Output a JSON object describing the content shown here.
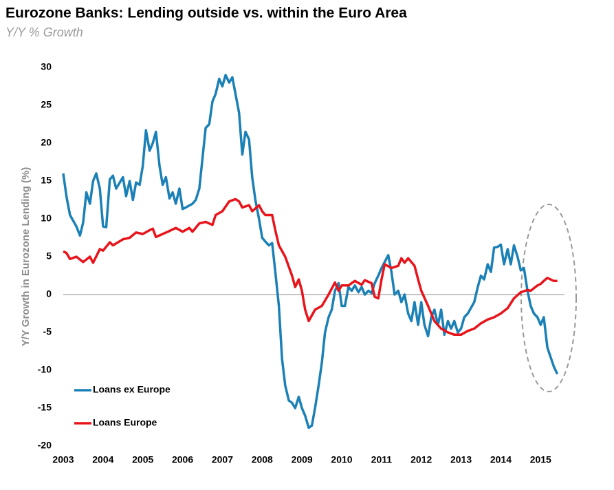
{
  "chart_data": {
    "type": "line",
    "title": "Eurozone Banks: Lending outside vs. within the Euro Area",
    "subtitle": "Y/Y % Growth",
    "ylabel": "Y/Y Growth in Eurozone Lending (%)",
    "xlim": [
      2003,
      2015.6
    ],
    "xticks": [
      2003,
      2004,
      2005,
      2006,
      2007,
      2008,
      2009,
      2010,
      2011,
      2012,
      2013,
      2014,
      2015
    ],
    "ylim": [
      -20,
      30
    ],
    "yticks": [
      -20,
      -15,
      -10,
      -5,
      0,
      5,
      10,
      15,
      20,
      25,
      30
    ],
    "series": [
      {
        "name": "Loans ex Europe",
        "color": "#1a80b6",
        "x": [
          2003.0,
          2003.08,
          2003.17,
          2003.33,
          2003.42,
          2003.5,
          2003.58,
          2003.67,
          2003.75,
          2003.83,
          2003.92,
          2004.0,
          2004.08,
          2004.17,
          2004.25,
          2004.33,
          2004.5,
          2004.58,
          2004.67,
          2004.75,
          2004.83,
          2004.92,
          2005.0,
          2005.08,
          2005.17,
          2005.25,
          2005.33,
          2005.42,
          2005.5,
          2005.58,
          2005.67,
          2005.75,
          2005.83,
          2005.92,
          2006.0,
          2006.08,
          2006.25,
          2006.33,
          2006.42,
          2006.5,
          2006.58,
          2006.67,
          2006.75,
          2006.83,
          2006.92,
          2007.0,
          2007.08,
          2007.17,
          2007.25,
          2007.33,
          2007.42,
          2007.5,
          2007.58,
          2007.67,
          2007.75,
          2007.83,
          2007.92,
          2008.0,
          2008.08,
          2008.17,
          2008.25,
          2008.33,
          2008.42,
          2008.5,
          2008.58,
          2008.67,
          2008.75,
          2008.83,
          2008.92,
          2009.0,
          2009.08,
          2009.17,
          2009.25,
          2009.33,
          2009.42,
          2009.5,
          2009.58,
          2009.67,
          2009.75,
          2009.83,
          2009.92,
          2010.0,
          2010.08,
          2010.17,
          2010.25,
          2010.33,
          2010.42,
          2010.5,
          2010.58,
          2010.67,
          2010.75,
          2010.83,
          2010.92,
          2011.0,
          2011.17,
          2011.25,
          2011.33,
          2011.42,
          2011.5,
          2011.58,
          2011.67,
          2011.75,
          2011.83,
          2011.92,
          2012.0,
          2012.08,
          2012.17,
          2012.25,
          2012.33,
          2012.42,
          2012.5,
          2012.58,
          2012.67,
          2012.75,
          2012.83,
          2012.92,
          2013.0,
          2013.08,
          2013.17,
          2013.33,
          2013.42,
          2013.5,
          2013.58,
          2013.67,
          2013.75,
          2013.83,
          2013.92,
          2014.0,
          2014.08,
          2014.17,
          2014.25,
          2014.33,
          2014.42,
          2014.5,
          2014.58,
          2014.67,
          2014.75,
          2014.83,
          2014.92,
          2015.0,
          2015.08,
          2015.17,
          2015.33,
          2015.42
        ],
        "values": [
          16,
          13,
          10.5,
          9,
          7.8,
          9.5,
          13.5,
          12,
          15,
          16,
          14,
          9,
          8.9,
          15.2,
          15.7,
          14,
          15.5,
          13,
          15,
          12.5,
          14.8,
          14.5,
          17,
          21.7,
          19,
          20,
          21.5,
          17,
          14.5,
          15.5,
          12.7,
          13.5,
          12,
          14,
          11.3,
          11.5,
          12,
          12.5,
          14,
          18,
          22,
          22.5,
          25.5,
          26.5,
          28.5,
          27.5,
          29,
          28,
          28.7,
          26.5,
          24,
          18.5,
          21.5,
          20.5,
          15.5,
          12.5,
          10,
          7.5,
          7,
          6.5,
          6.8,
          3,
          -1.5,
          -8.5,
          -12,
          -14,
          -14.3,
          -15,
          -13.5,
          -15,
          -16,
          -17.6,
          -17.3,
          -15,
          -12,
          -9,
          -5,
          -3,
          -2,
          0.5,
          1.5,
          -1.5,
          -1.5,
          1,
          0.5,
          1.2,
          0.3,
          1,
          0,
          0.5,
          0.2,
          1.5,
          2.5,
          3.5,
          5.2,
          3,
          0,
          0.5,
          -1,
          0,
          -2.5,
          -3.5,
          -1,
          -4,
          -1,
          -4,
          -5.5,
          -3,
          -2,
          -4,
          -2,
          -5.3,
          -3.5,
          -4.5,
          -3.5,
          -5,
          -4.5,
          -3,
          -2.5,
          -1,
          1,
          2.5,
          2,
          4,
          3,
          6.2,
          6.3,
          6.6,
          4,
          6,
          4,
          6.5,
          5,
          3.2,
          3.5,
          0.5,
          -1.5,
          -2.5,
          -3,
          -4,
          -3,
          -7,
          -9.5,
          -10.5
        ]
      },
      {
        "name": "Loans Europe",
        "color": "#e8141b",
        "x": [
          2003.0,
          2003.08,
          2003.17,
          2003.33,
          2003.5,
          2003.67,
          2003.75,
          2003.92,
          2004.0,
          2004.17,
          2004.25,
          2004.5,
          2004.67,
          2004.83,
          2005.0,
          2005.17,
          2005.25,
          2005.33,
          2005.5,
          2005.67,
          2005.83,
          2006.0,
          2006.17,
          2006.25,
          2006.42,
          2006.58,
          2006.75,
          2006.83,
          2007.0,
          2007.17,
          2007.33,
          2007.42,
          2007.5,
          2007.67,
          2007.75,
          2007.92,
          2008.0,
          2008.08,
          2008.25,
          2008.33,
          2008.42,
          2008.58,
          2008.75,
          2008.83,
          2008.92,
          2009.0,
          2009.08,
          2009.17,
          2009.33,
          2009.5,
          2009.67,
          2009.83,
          2009.92,
          2010.0,
          2010.17,
          2010.33,
          2010.5,
          2010.58,
          2010.75,
          2010.83,
          2010.92,
          2011.0,
          2011.08,
          2011.25,
          2011.42,
          2011.5,
          2011.58,
          2011.67,
          2011.83,
          2011.92,
          2012.0,
          2012.17,
          2012.33,
          2012.5,
          2012.67,
          2012.83,
          2013.0,
          2013.17,
          2013.33,
          2013.5,
          2013.67,
          2013.83,
          2014.0,
          2014.17,
          2014.33,
          2014.5,
          2014.67,
          2014.75,
          2014.92,
          2015.0,
          2015.08,
          2015.17,
          2015.33,
          2015.42
        ],
        "values": [
          5.7,
          5.5,
          4.7,
          5,
          4.3,
          5,
          4.2,
          6,
          5.8,
          6.9,
          6.5,
          7.3,
          7.5,
          8.2,
          8,
          8.5,
          8.7,
          7.6,
          8,
          8.4,
          8.8,
          8.3,
          8.8,
          8.3,
          9.4,
          9.6,
          9.2,
          10.5,
          11,
          12.3,
          12.6,
          12.3,
          11.5,
          11.8,
          11,
          11.8,
          11,
          10.5,
          10.5,
          8.5,
          6.5,
          5,
          2.5,
          1,
          2,
          0.5,
          -2,
          -3.5,
          -2,
          -1.5,
          0,
          1.6,
          0.5,
          1.2,
          1.2,
          1.8,
          1.3,
          1.9,
          1.5,
          -0.3,
          -0.5,
          2,
          4,
          3.5,
          3.8,
          4.8,
          4.2,
          4.8,
          3.8,
          2,
          0.5,
          -1.5,
          -3.5,
          -4.5,
          -5,
          -5.3,
          -5.3,
          -4.8,
          -4.5,
          -3.8,
          -3.3,
          -3,
          -2.5,
          -1.8,
          -0.5,
          0.3,
          0.6,
          0.5,
          1.2,
          1.4,
          1.8,
          2.2,
          1.8,
          1.8
        ]
      }
    ]
  }
}
